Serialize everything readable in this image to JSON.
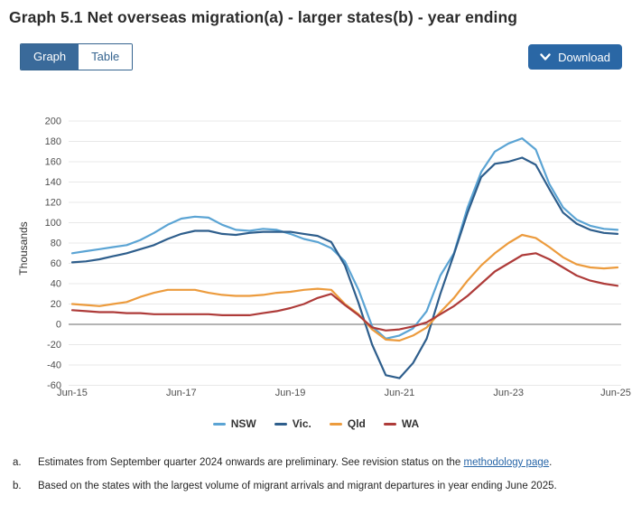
{
  "header": {
    "title": "Graph 5.1 Net overseas migration(a) - larger states(b) - year ending"
  },
  "toolbar": {
    "graph_tab": "Graph",
    "table_tab": "Table",
    "download_label": "Download",
    "toggle_active_color": "#3a6a9a",
    "download_color": "#2a67a5"
  },
  "chart_data": {
    "type": "line",
    "ylabel": "Thousands",
    "ylim": [
      -60,
      200
    ],
    "grid": true,
    "legend_position": "bottom",
    "y_ticks": [
      200,
      180,
      160,
      140,
      120,
      100,
      80,
      60,
      40,
      20,
      0,
      -20,
      -40,
      -60
    ],
    "x_tick_labels": [
      "Jun-15",
      "Jun-17",
      "Jun-19",
      "Jun-21",
      "Jun-23",
      "Jun-25"
    ],
    "x_tick_indices": [
      0,
      8,
      16,
      24,
      32,
      40
    ],
    "categories": [
      "Jun-15",
      "Sep-15",
      "Dec-15",
      "Mar-16",
      "Jun-16",
      "Sep-16",
      "Dec-16",
      "Mar-17",
      "Jun-17",
      "Sep-17",
      "Dec-17",
      "Mar-18",
      "Jun-18",
      "Sep-18",
      "Dec-18",
      "Mar-19",
      "Jun-19",
      "Sep-19",
      "Dec-19",
      "Mar-20",
      "Jun-20",
      "Sep-20",
      "Dec-20",
      "Mar-21",
      "Jun-21",
      "Sep-21",
      "Dec-21",
      "Mar-22",
      "Jun-22",
      "Sep-22",
      "Dec-22",
      "Mar-23",
      "Jun-23",
      "Sep-23",
      "Dec-23",
      "Mar-24",
      "Jun-24",
      "Sep-24",
      "Dec-24",
      "Mar-25",
      "Jun-25"
    ],
    "series": [
      {
        "name": "NSW",
        "color": "#5BA4D4",
        "values": [
          70,
          72,
          74,
          76,
          78,
          83,
          90,
          98,
          104,
          106,
          105,
          98,
          93,
          92,
          94,
          93,
          89,
          84,
          81,
          75,
          62,
          34,
          -2,
          -14,
          -11,
          -4,
          13,
          48,
          70,
          115,
          150,
          170,
          178,
          183,
          172,
          138,
          115,
          103,
          97,
          94,
          93
        ]
      },
      {
        "name": "Vic.",
        "color": "#2E5E8C",
        "values": [
          61,
          62,
          64,
          67,
          70,
          74,
          78,
          84,
          89,
          92,
          92,
          89,
          88,
          90,
          91,
          91,
          91,
          89,
          87,
          81,
          58,
          21,
          -20,
          -50,
          -53,
          -38,
          -14,
          30,
          69,
          110,
          145,
          158,
          160,
          164,
          157,
          133,
          110,
          99,
          93,
          90,
          89
        ]
      },
      {
        "name": "Qld",
        "color": "#EC9B3D",
        "values": [
          20,
          19,
          18,
          20,
          22,
          27,
          31,
          34,
          34,
          34,
          31,
          29,
          28,
          28,
          29,
          31,
          32,
          34,
          35,
          34,
          20,
          10,
          -5,
          -15,
          -16,
          -11,
          -3,
          12,
          26,
          43,
          58,
          70,
          80,
          88,
          85,
          76,
          66,
          59,
          56,
          55,
          56
        ]
      },
      {
        "name": "WA",
        "color": "#AE3B39",
        "values": [
          14,
          13,
          12,
          12,
          11,
          11,
          10,
          10,
          10,
          10,
          10,
          9,
          9,
          9,
          11,
          13,
          16,
          20,
          26,
          30,
          19,
          9,
          -3,
          -6,
          -5,
          -2,
          2,
          10,
          18,
          28,
          40,
          52,
          60,
          68,
          70,
          64,
          56,
          48,
          43,
          40,
          38
        ]
      }
    ]
  },
  "footnotes": [
    {
      "label": "a.",
      "text_before": "Estimates from September quarter 2024 onwards are preliminary. See revision status on the ",
      "link_text": "methodology page",
      "text_after": "."
    },
    {
      "label": "b.",
      "text": "Based on the states with the largest volume of migrant arrivals and migrant departures in year ending June 2025."
    }
  ]
}
